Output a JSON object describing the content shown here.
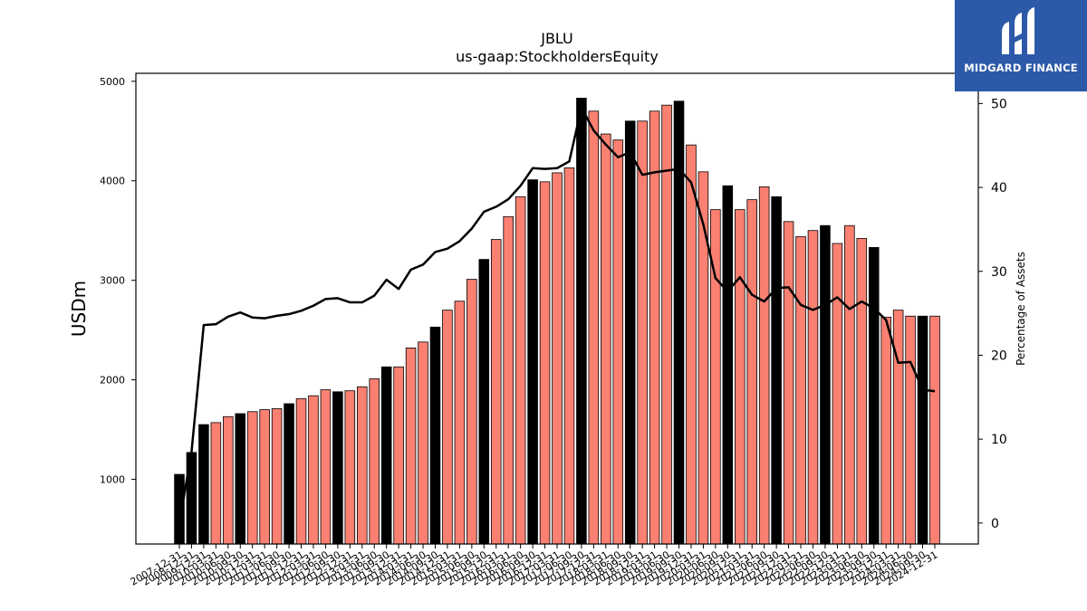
{
  "chart_data": {
    "type": "bar",
    "title": "JBLU",
    "subtitle": "us-gaap:StockholdersEquity",
    "ylabel": "USDm",
    "y2label": "Percentage of Assets",
    "ylim": [
      350,
      5080
    ],
    "y2lim": [
      -2.5,
      53.6
    ],
    "yticks": [
      1000,
      2000,
      3000,
      4000,
      5000
    ],
    "y2ticks": [
      0,
      10,
      20,
      30,
      40,
      50
    ],
    "categories": [
      "2007-12-31",
      "2008-12-31",
      "2009-12-31",
      "2010-03-31",
      "2010-06-30",
      "2010-09-30",
      "2010-12-31",
      "2011-03-31",
      "2011-06-30",
      "2011-09-30",
      "2011-12-31",
      "2012-03-31",
      "2012-06-30",
      "2012-09-30",
      "2012-12-31",
      "2013-03-31",
      "2013-06-30",
      "2013-09-30",
      "2013-12-31",
      "2014-03-31",
      "2014-06-30",
      "2014-09-30",
      "2014-12-31",
      "2015-03-31",
      "2015-06-30",
      "2015-09-30",
      "2015-12-31",
      "2016-03-31",
      "2016-06-30",
      "2016-09-30",
      "2016-12-31",
      "2017-03-31",
      "2017-06-30",
      "2017-09-30",
      "2017-12-31",
      "2018-03-31",
      "2018-06-30",
      "2018-09-30",
      "2018-12-31",
      "2019-03-31",
      "2019-06-30",
      "2019-09-30",
      "2019-12-31",
      "2020-03-31",
      "2020-06-30",
      "2020-09-30",
      "2020-12-31",
      "2021-03-31",
      "2021-06-30",
      "2021-09-30",
      "2021-12-31",
      "2022-03-31",
      "2022-06-30",
      "2022-09-30",
      "2022-12-31",
      "2023-03-31",
      "2023-06-30",
      "2023-09-30",
      "2023-12-31",
      "2024-03-31",
      "2024-06-30",
      "2024-09-30",
      "2024-12-31"
    ],
    "series": [
      {
        "type": "bar",
        "values": [
          1050,
          1270,
          1550,
          1570,
          1630,
          1660,
          1680,
          1700,
          1710,
          1760,
          1810,
          1840,
          1900,
          1880,
          1890,
          1930,
          2010,
          2130,
          2130,
          2320,
          2380,
          2530,
          2700,
          2790,
          3010,
          3210,
          3410,
          3640,
          3840,
          4010,
          3990,
          4080,
          4130,
          4830,
          4700,
          4470,
          4410,
          4600,
          4600,
          4700,
          4760,
          4800,
          4360,
          4090,
          3710,
          3950,
          3710,
          3810,
          3940,
          3840,
          3590,
          3440,
          3500,
          3550,
          3370,
          3550,
          3420,
          3330,
          2630,
          2700,
          2640,
          2640,
          2640
        ],
        "highlight": [
          1,
          1,
          1,
          0,
          0,
          1,
          0,
          0,
          0,
          1,
          0,
          0,
          0,
          1,
          0,
          0,
          0,
          1,
          0,
          0,
          0,
          1,
          0,
          0,
          0,
          1,
          0,
          0,
          0,
          1,
          0,
          0,
          0,
          1,
          0,
          0,
          0,
          1,
          0,
          0,
          0,
          1,
          0,
          0,
          0,
          1,
          0,
          0,
          0,
          1,
          0,
          0,
          0,
          1,
          0,
          0,
          0,
          1,
          0,
          0,
          0,
          1,
          0
        ],
        "color": "#fa8072",
        "highlight_color": "#000000"
      },
      {
        "type": "line",
        "axis": "right",
        "values": [
          0,
          8.5,
          23.6,
          23.7,
          24.6,
          25.1,
          24.5,
          24.4,
          24.7,
          24.9,
          25.3,
          25.9,
          26.7,
          26.8,
          26.3,
          26.3,
          27.1,
          29.0,
          27.9,
          30.2,
          30.8,
          32.3,
          32.7,
          33.6,
          35.1,
          37.1,
          37.7,
          38.6,
          40.2,
          42.3,
          42.2,
          42.3,
          43.1,
          49.5,
          46.8,
          45.1,
          43.6,
          44.2,
          41.5,
          41.8,
          42.0,
          42.2,
          40.6,
          35.6,
          29.2,
          27.6,
          29.3,
          27.2,
          26.4,
          28.0,
          28.1,
          26.0,
          25.4,
          26.0,
          26.9,
          25.5,
          26.4,
          25.6,
          24.2,
          19.1,
          19.2,
          15.9,
          15.7
        ],
        "color": "#000000"
      }
    ],
    "grid": false
  },
  "logo": {
    "text": "MIDGARD FINANCE",
    "bg_color": "#2d5aa8"
  }
}
